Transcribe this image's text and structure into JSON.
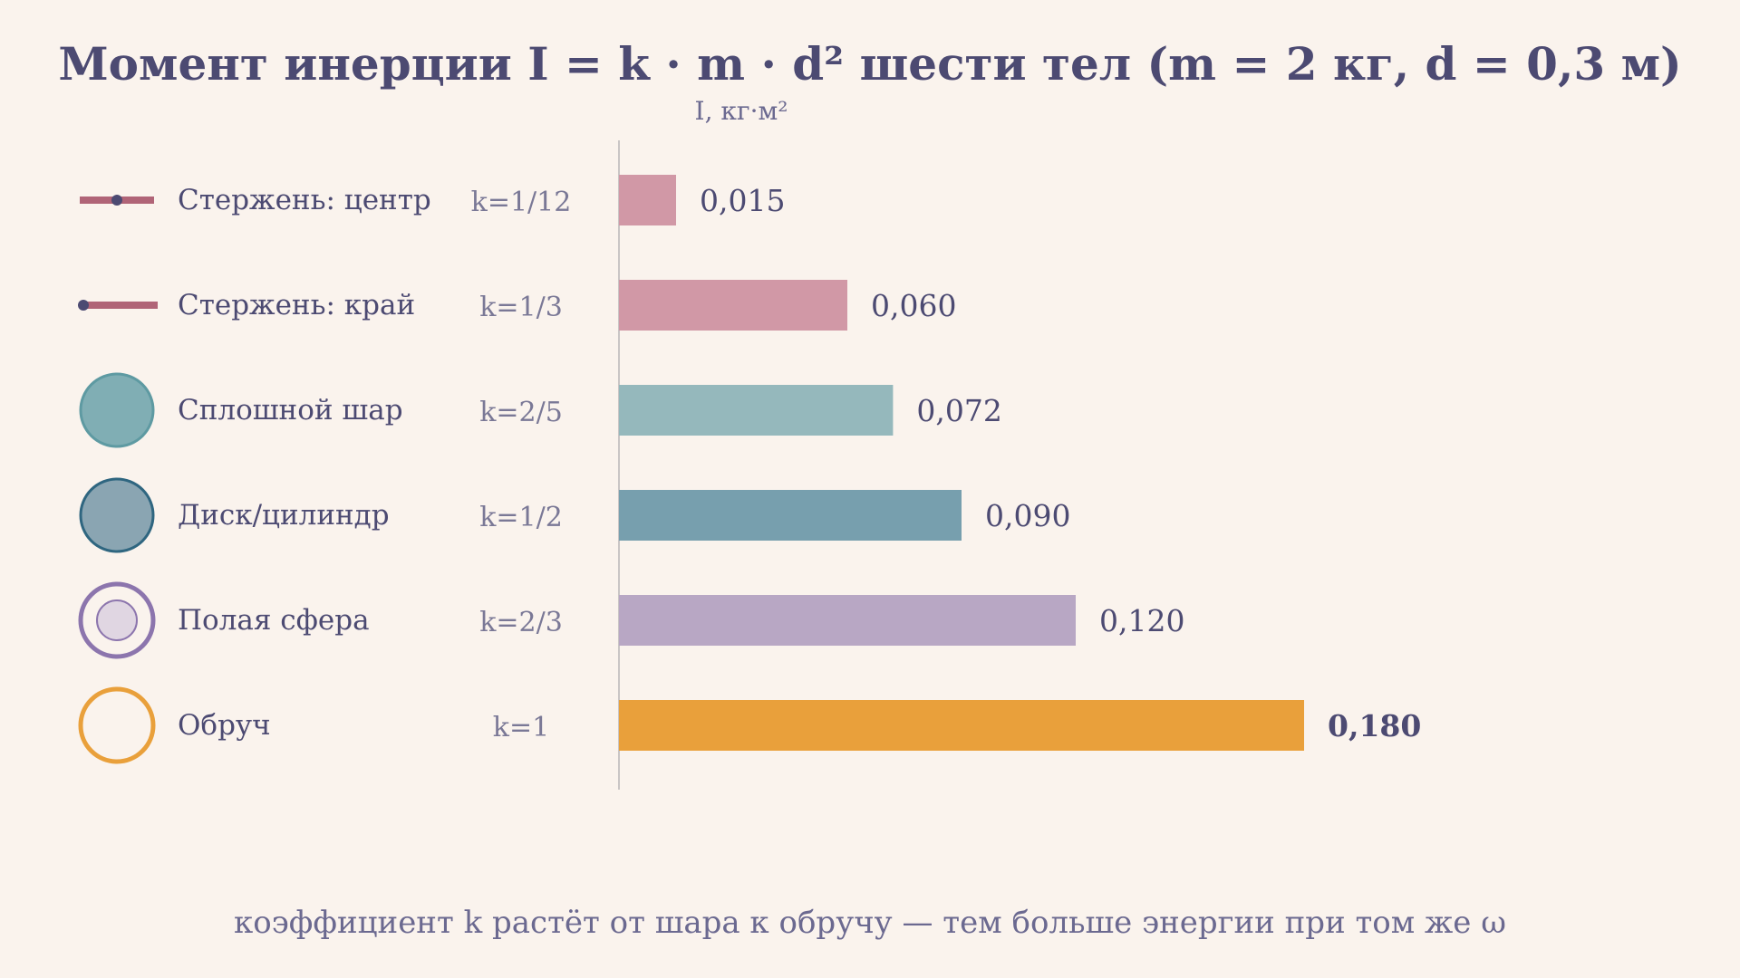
{
  "title": "Момент инерции I = k · m · d² шести тел (m = 2 кг, d = 0,3 м)",
  "axis_unit": "I, кг·м²",
  "footer": "коэффициент k растёт от шара к обручу — тем больше энергии при том же ω",
  "chart_data": {
    "type": "bar",
    "orientation": "horizontal",
    "title": "Момент инерции I = k · m · d² шести тел (m = 2 кг, d = 0,3 м)",
    "xlabel": "I, кг·м²",
    "categories": [
      "Стержень: центр",
      "Стержень: край",
      "Сплошной шар",
      "Диск/цилиндр",
      "Полая сфера",
      "Обруч"
    ],
    "k_labels": [
      "k=1/12",
      "k=1/3",
      "k=2/5",
      "k=1/2",
      "k=2/3",
      "k=1"
    ],
    "values": [
      0.015,
      0.06,
      0.072,
      0.09,
      0.12,
      0.18
    ],
    "value_labels": [
      "0,015",
      "0,060",
      "0,072",
      "0,090",
      "0,120",
      "0,180"
    ],
    "xlim": [
      0,
      0.18
    ],
    "grid": false,
    "legend": "none",
    "colors": [
      "#d198a6",
      "#d198a6",
      "#95b8bc",
      "#779fae",
      "#b8a7c4",
      "#e9a03b"
    ],
    "icons": [
      "rod-center-icon",
      "rod-end-icon",
      "solid-sphere-icon",
      "disk-icon",
      "hollow-sphere-icon",
      "hoop-icon"
    ]
  }
}
